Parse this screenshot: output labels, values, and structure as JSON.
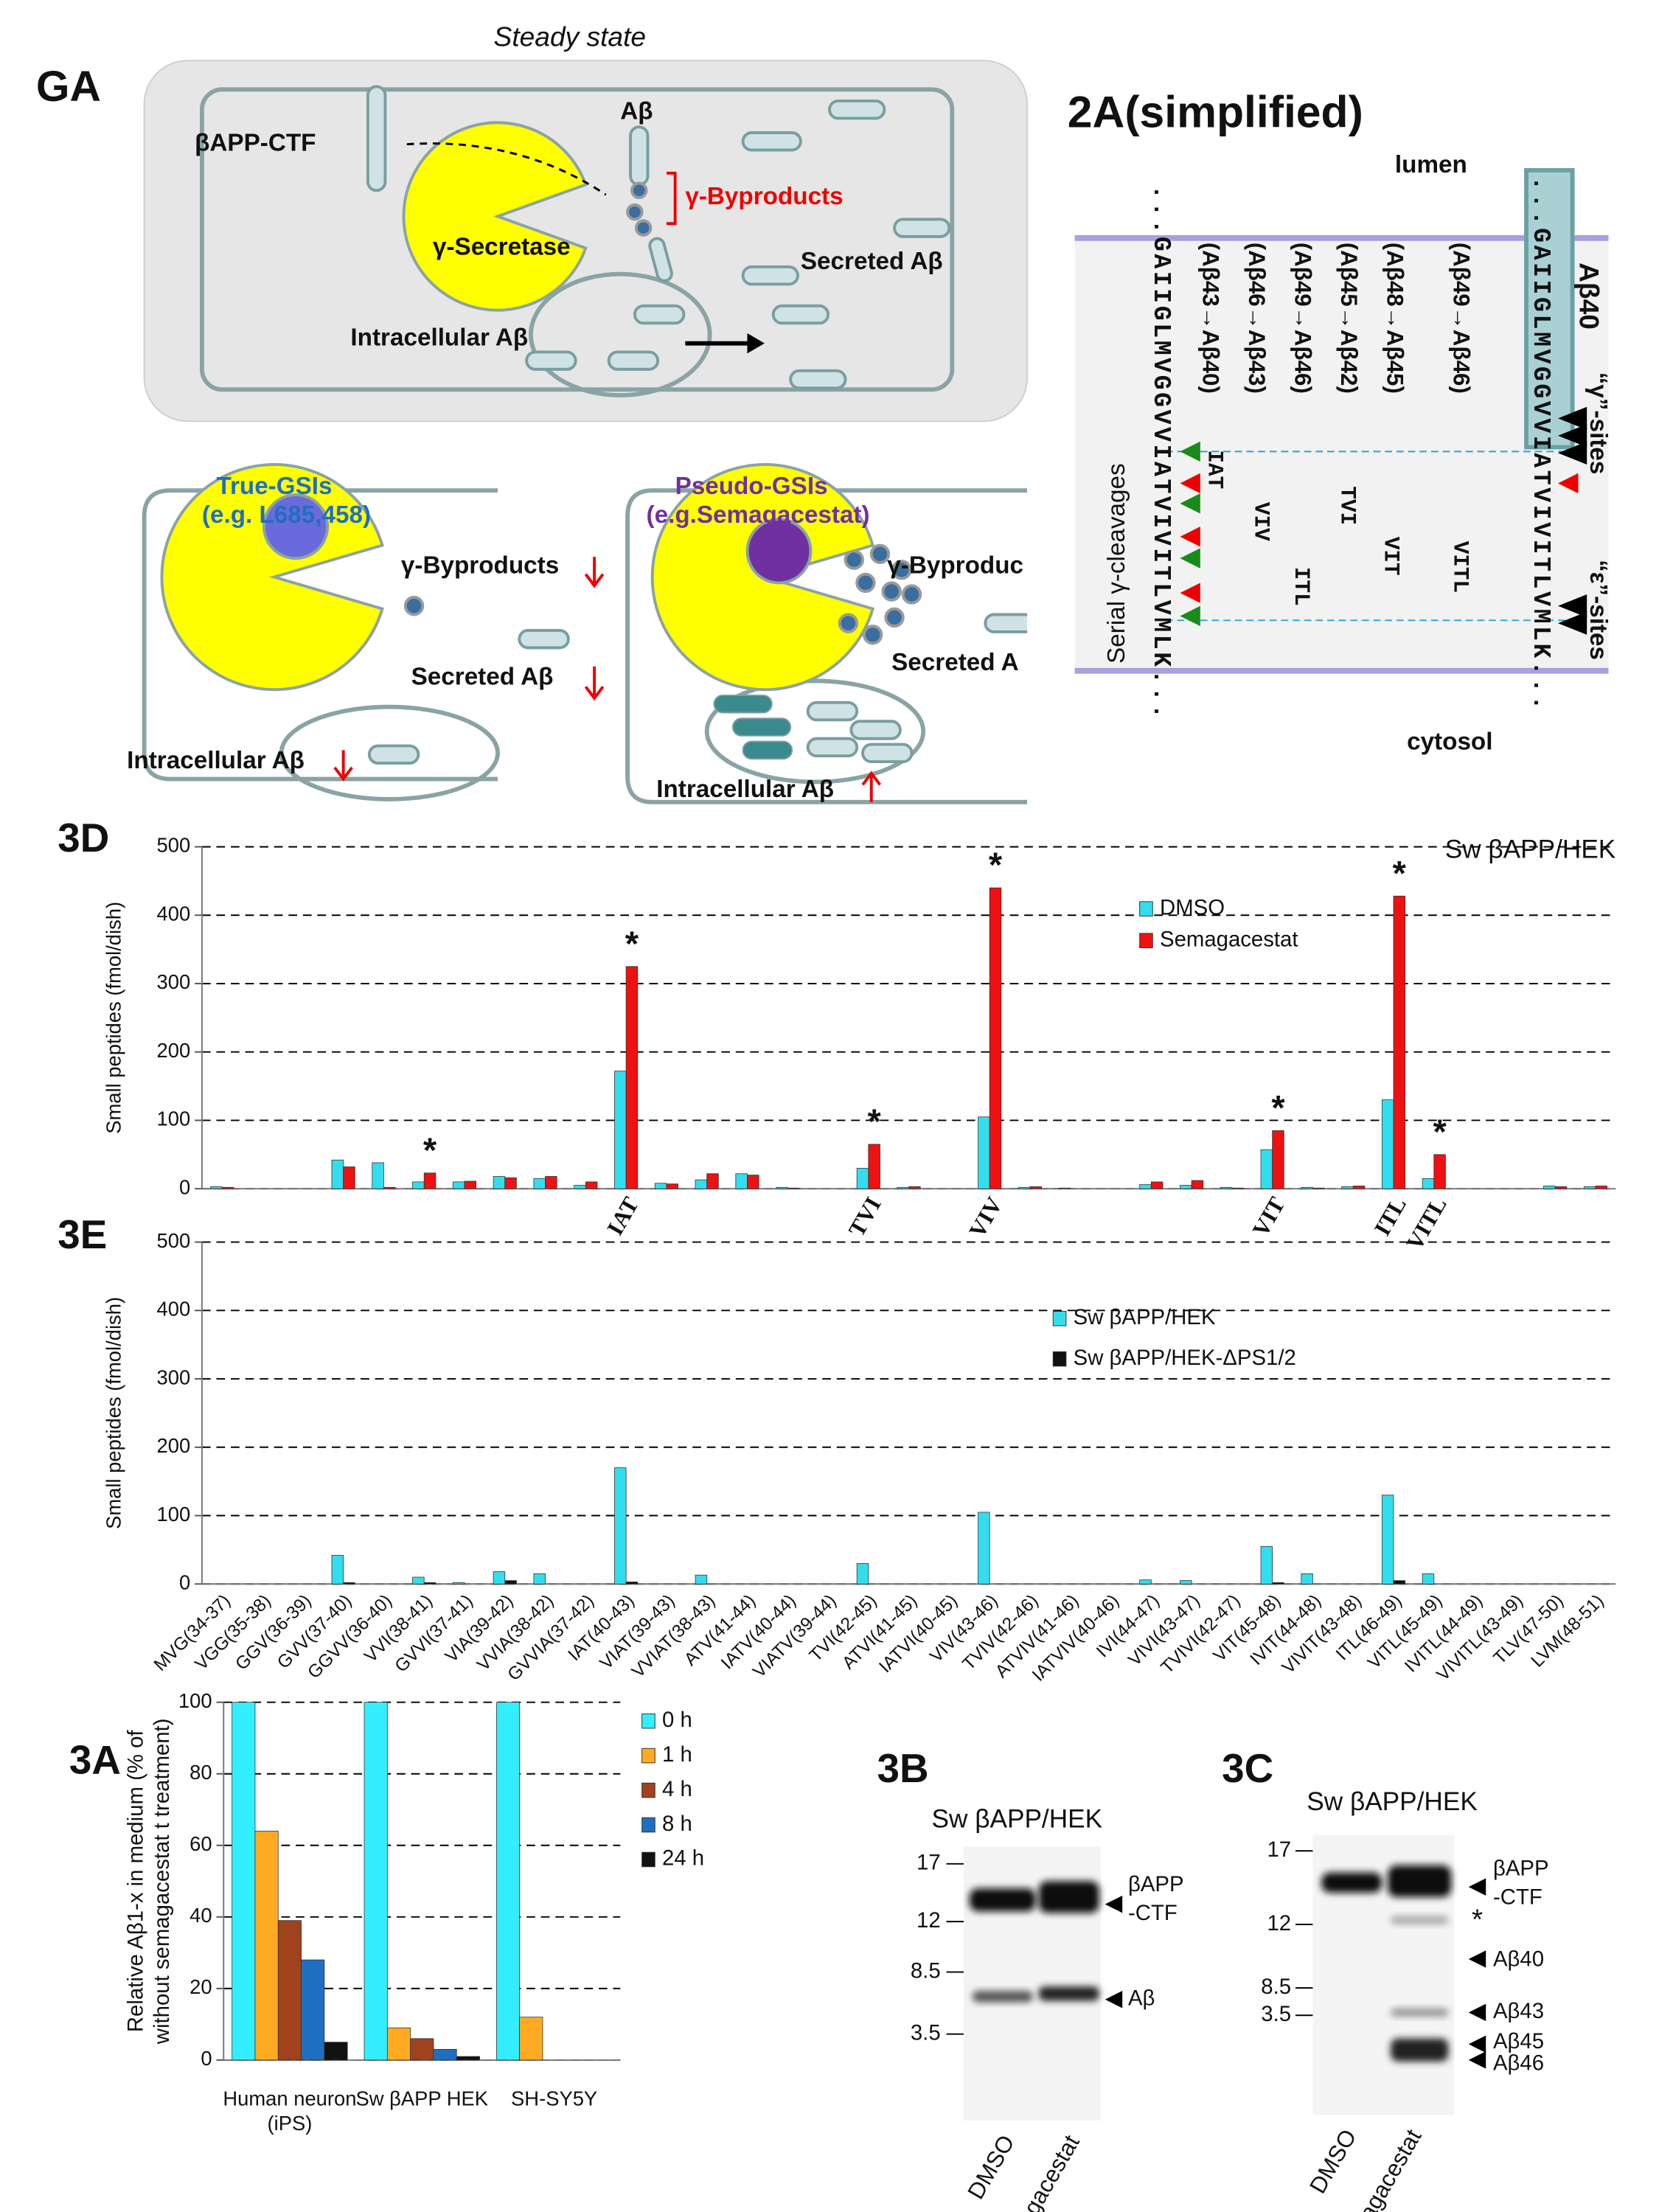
{
  "graphical_abstract": {
    "label": "GA",
    "title": "Steady state",
    "steady": {
      "substrate": "βAPP-CTF",
      "product": "Aβ",
      "byproducts": "γ-Byproducts",
      "enzyme": "γ-Secretase",
      "secreted": "Secreted Aβ",
      "intracellular": "Intracellular Aβ"
    },
    "true_gsi": {
      "name": "True-GSIs",
      "example": "(e.g. L685,458)",
      "byproducts": "γ-Byproducts",
      "secreted": "Secreted Aβ",
      "intracellular": "Intracellular Aβ"
    },
    "pseudo_gsi": {
      "name": "Pseudo-GSIs",
      "example": "(e.g.Semagacestat)",
      "byproducts": "γ-Byproduc",
      "secreted": "Secreted A",
      "intracellular": "Intracellular Aβ"
    }
  },
  "figure_2a": {
    "label": "2A(simplified)",
    "lumen": "lumen",
    "cytosol": "cytosol",
    "peptide": "Aβ40",
    "gamma_sites": "“γ”-sites",
    "epsilon_sites": "“ε”-sites",
    "cleavage": "Serial γ-cleavages",
    "sequence": "...GAIIGLMVGGVVIATVIVITLVMLK...",
    "steps": [
      "(Aβ43→Aβ40)",
      "(Aβ46→Aβ43)",
      "(Aβ49→Aβ46)",
      "(Aβ45→Aβ42)",
      "(Aβ48→Aβ45)",
      "(Aβ49→Aβ46)"
    ],
    "peptides": [
      "IAT",
      "VIV",
      "ITL",
      "TVI",
      "VIT",
      "VITL"
    ]
  },
  "chart_data": [
    {
      "type": "bar",
      "panel": "3D",
      "subtitle": "Sw βAPP/HEK",
      "ylabel": "Small peptides  (fmol/dish)",
      "series": [
        {
          "name": "DMSO",
          "color": "#33ddee",
          "values": [
            3,
            0,
            0,
            42,
            38,
            10,
            10,
            18,
            15,
            5,
            172,
            8,
            13,
            22,
            2,
            0,
            30,
            2,
            0,
            105,
            2,
            1,
            0,
            6,
            5,
            2,
            57,
            2,
            3,
            130,
            15,
            0,
            0,
            4,
            3
          ]
        },
        {
          "name": "Semagacestat",
          "color": "#ee1111",
          "values": [
            2,
            0,
            0,
            32,
            2,
            23,
            11,
            16,
            18,
            10,
            325,
            7,
            22,
            20,
            1,
            0,
            65,
            3,
            0,
            440,
            3,
            0,
            0,
            10,
            12,
            1,
            85,
            1,
            4,
            428,
            50,
            0,
            0,
            3,
            4
          ]
        }
      ],
      "ylim": [
        0,
        500
      ],
      "yticks": [
        0,
        100,
        200,
        300,
        400,
        500
      ],
      "grid": true,
      "annotations": [
        {
          "text": "*",
          "category": "VVI(38-41)"
        },
        {
          "text": "*",
          "category": "IAT(40-43)"
        },
        {
          "text": "*",
          "category": "TVI(42-45)"
        },
        {
          "text": "*",
          "category": "VIV(43-46)"
        },
        {
          "text": "*",
          "category": "VIT(45-48)"
        },
        {
          "text": "*",
          "category": "ITL(46-49)"
        },
        {
          "text": "*",
          "category": "VITL(45-49)"
        }
      ],
      "peptide_labels": [
        {
          "text": "IAT",
          "category": "IAT(40-43)"
        },
        {
          "text": "TVI",
          "category": "TVI(42-45)"
        },
        {
          "text": "VIV",
          "category": "VIV(43-46)"
        },
        {
          "text": "VIT",
          "category": "VIT(45-48)"
        },
        {
          "text": "ITL",
          "category": "ITL(46-49)"
        },
        {
          "text": "VITL",
          "category": "VITL(45-49)"
        }
      ]
    },
    {
      "type": "bar",
      "panel": "3E",
      "ylabel": "Small peptides  (fmol/dish)",
      "categories": [
        "MVG(34-37)",
        "VGG(35-38)",
        "GGV(36-39)",
        "GVV(37-40)",
        "GGVV(36-40)",
        "VVI(38-41)",
        "GVVI(37-41)",
        "VIA(39-42)",
        "VVIA(38-42)",
        "GVVIA(37-42)",
        "IAT(40-43)",
        "VIAT(39-43)",
        "VVIAT(38-43)",
        "ATV(41-44)",
        "IATV(40-44)",
        "VIATV(39-44)",
        "TVI(42-45)",
        "ATVI(41-45)",
        "IATVI(40-45)",
        "VIV(43-46)",
        "TVIV(42-46)",
        "ATVIV(41-46)",
        "IATVIV(40-46)",
        "IVI(44-47)",
        "VIVI(43-47)",
        "TVIVI(42-47)",
        "VIT(45-48)",
        "IVIT(44-48)",
        "VIVIT(43-48)",
        "ITL(46-49)",
        "VITL(45-49)",
        "IVITL(44-49)",
        "VIVITL(43-49)",
        "TLV(47-50)",
        "LVM(48-51)"
      ],
      "series": [
        {
          "name": "Sw βAPP/HEK",
          "color": "#33ddee",
          "values": [
            0,
            0,
            0,
            42,
            0,
            10,
            2,
            18,
            15,
            0,
            170,
            0,
            13,
            0,
            0,
            0,
            30,
            0,
            0,
            105,
            0,
            0,
            0,
            6,
            5,
            0,
            55,
            15,
            0,
            130,
            15,
            0,
            0,
            0,
            0
          ]
        },
        {
          "name": "Sw βAPP/HEK-ΔPS1/2",
          "color": "#111111",
          "values": [
            0,
            0,
            0,
            2,
            0,
            2,
            0,
            5,
            0,
            0,
            3,
            0,
            0,
            0,
            0,
            0,
            0,
            0,
            0,
            0,
            0,
            0,
            0,
            0,
            0,
            0,
            2,
            0,
            0,
            5,
            0,
            0,
            0,
            0,
            0
          ]
        }
      ],
      "ylim": [
        0,
        500
      ],
      "yticks": [
        0,
        100,
        200,
        300,
        400,
        500
      ],
      "grid": true
    },
    {
      "type": "bar",
      "panel": "3A",
      "ylabel": [
        "Relative Aβ1-x in medium (% of",
        "without  semagacestat t treatment)"
      ],
      "categories": [
        "Human neuron (iPS)",
        "Sw βAPP HEK",
        "SH-SY5Y"
      ],
      "series": [
        {
          "name": "0 h",
          "color": "#33eeff",
          "values": [
            100,
            100,
            100
          ]
        },
        {
          "name": "1 h",
          "color": "#ffaa22",
          "values": [
            64,
            9,
            12
          ]
        },
        {
          "name": "4 h",
          "color": "#a0421e",
          "values": [
            39,
            6,
            null
          ]
        },
        {
          "name": "8 h",
          "color": "#1f6fc0",
          "values": [
            28,
            3,
            null
          ]
        },
        {
          "name": "24 h",
          "color": "#111111",
          "values": [
            5,
            1,
            null
          ]
        }
      ],
      "ylim": [
        0,
        100
      ],
      "yticks": [
        0,
        20,
        40,
        60,
        80,
        100
      ],
      "grid": true
    }
  ],
  "blot_3b": {
    "label": "3B",
    "title": "Sw βAPP/HEK",
    "markers": [
      "17",
      "12",
      "8.5",
      "3.5"
    ],
    "bands": [
      [
        "βAPP",
        "-CTF"
      ],
      [
        "Aβ"
      ]
    ],
    "lanes": [
      "DMSO",
      "Semagacestat"
    ]
  },
  "blot_3c": {
    "label": "3C",
    "title": "Sw βAPP/HEK",
    "markers": [
      "17",
      "12",
      "8.5",
      "3.5"
    ],
    "bands": [
      [
        "βAPP",
        "-CTF"
      ],
      [
        "*"
      ],
      [
        "Aβ40"
      ],
      [
        "Aβ43"
      ],
      [
        "Aβ45"
      ],
      [
        "Aβ46"
      ]
    ],
    "lanes": [
      "DMSO",
      "Semagacestat"
    ]
  }
}
